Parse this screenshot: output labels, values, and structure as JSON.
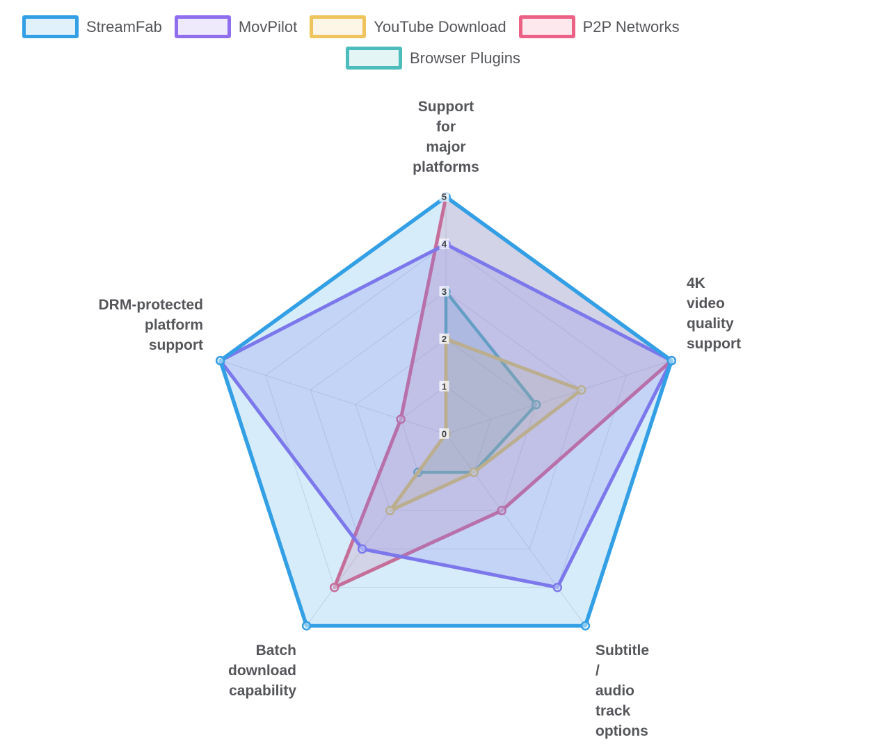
{
  "chart_data": {
    "type": "radar",
    "title": "",
    "legend_position": "top",
    "grid": true,
    "scale": {
      "min": 0,
      "max": 5,
      "step": 1,
      "ticks": [
        0,
        1,
        2,
        3,
        4,
        5
      ]
    },
    "axes": [
      "Support\nfor\nmajor\nplatforms",
      "4K\nvideo\nquality\nsupport",
      "Subtitle\n/\naudio\ntrack\noptions",
      "Batch\ndownload\ncapability",
      "DRM-protected\nplatform\nsupport"
    ],
    "categories": [
      "Support for major platforms",
      "4K video quality support",
      "Subtitle / audio track options",
      "Batch download capability",
      "DRM-protected platform support"
    ],
    "series": [
      {
        "name": "StreamFab",
        "color": "#339FE5",
        "values": [
          5,
          5,
          5,
          5,
          5
        ]
      },
      {
        "name": "MovPilot",
        "color": "#8F6FEE",
        "values": [
          4,
          5,
          4,
          3,
          5
        ]
      },
      {
        "name": "YouTube Download",
        "color": "#EFC45C",
        "values": [
          2,
          3,
          1,
          2,
          0
        ]
      },
      {
        "name": "P2P Networks",
        "color": "#EC6287",
        "values": [
          5,
          5,
          2,
          4,
          1
        ]
      },
      {
        "name": "Browser Plugins",
        "color": "#4CBCBC",
        "values": [
          3,
          2,
          1,
          1,
          0
        ]
      }
    ]
  },
  "ui": {
    "label_color": "#55565A",
    "tick_color": "#3E3E42",
    "grid_color": "#8C8CA0",
    "background": "#FFFFFF"
  }
}
